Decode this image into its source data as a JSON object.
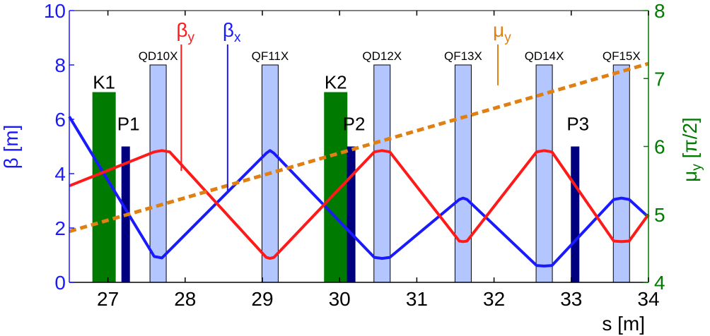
{
  "chart_data": {
    "type": "line",
    "x_label": "s [m]",
    "y_left_label_main": "β",
    "y_left_label_unit": " [m]",
    "y_right_label_main": "μ",
    "y_right_label_sub": "y",
    "y_right_label_unit": " [π/2]",
    "x_range": [
      26.5,
      34
    ],
    "y_left_range": [
      0,
      10
    ],
    "y_right_range": [
      4,
      8
    ],
    "x_ticks": [
      "27",
      "28",
      "29",
      "30",
      "31",
      "32",
      "33",
      "34"
    ],
    "y_left_ticks": [
      "0",
      "2",
      "4",
      "6",
      "8",
      "10"
    ],
    "y_right_ticks": [
      "4",
      "5",
      "6",
      "7",
      "8"
    ],
    "colors": {
      "beta_x": "#1a1aff",
      "beta_y": "#ff1a1a",
      "mu_y": "#e07f12",
      "kicker": "#007a00",
      "bpm": "#00007f",
      "quad_fill": "#b3c6ff",
      "right_axis": "#007a00",
      "left_axis": "#1a1aff"
    },
    "series": [
      {
        "name": "βx",
        "key": "beta_x",
        "x": [
          26.5,
          27.6,
          27.7,
          29.05,
          29.1,
          29.15,
          30.45,
          30.55,
          30.65,
          31.55,
          31.6,
          31.65,
          32.55,
          32.65,
          32.75,
          33.55,
          33.65,
          33.75,
          34.0
        ],
        "y": [
          6.1,
          0.95,
          0.9,
          4.75,
          4.85,
          4.75,
          0.92,
          0.88,
          0.92,
          3.05,
          3.1,
          3.05,
          0.62,
          0.6,
          0.62,
          3.05,
          3.1,
          3.05,
          2.4
        ]
      },
      {
        "name": "βy",
        "key": "beta_y",
        "x": [
          26.5,
          27.6,
          27.7,
          27.8,
          29.05,
          29.1,
          29.15,
          30.45,
          30.55,
          30.65,
          31.55,
          31.6,
          31.65,
          32.55,
          32.65,
          32.75,
          33.55,
          33.65,
          33.75,
          34.0
        ],
        "y": [
          3.55,
          4.8,
          4.85,
          4.8,
          0.92,
          0.88,
          0.92,
          4.8,
          4.85,
          4.8,
          1.52,
          1.5,
          1.52,
          4.8,
          4.85,
          4.8,
          1.52,
          1.5,
          1.52,
          2.5
        ]
      },
      {
        "name": "μy",
        "key": "mu_y",
        "axis": "right",
        "dashed": true,
        "x": [
          26.5,
          34.0
        ],
        "y": [
          4.75,
          7.22
        ]
      }
    ],
    "quadrupoles": [
      {
        "label": "QD10X",
        "center": 27.65,
        "height": 8.0
      },
      {
        "label": "QF11X",
        "center": 29.1,
        "height": 8.0
      },
      {
        "label": "QD12X",
        "center": 30.55,
        "height": 8.0
      },
      {
        "label": "QF13X",
        "center": 31.6,
        "height": 8.0
      },
      {
        "label": "QD14X",
        "center": 32.65,
        "height": 8.0
      },
      {
        "label": "QF15X",
        "center": 33.65,
        "height": 8.0
      }
    ],
    "kickers": [
      {
        "label": "K1",
        "center": 26.95,
        "height": 7.0
      },
      {
        "label": "K2",
        "center": 29.95,
        "height": 7.0
      }
    ],
    "bpms": [
      {
        "label": "P1",
        "center": 27.23,
        "height": 5.0
      },
      {
        "label": "P2",
        "center": 30.15,
        "height": 5.0
      },
      {
        "label": "P3",
        "center": 33.05,
        "height": 5.0
      }
    ],
    "annotations": [
      {
        "main": "β",
        "sub": "y",
        "key": "beta_y",
        "x": 27.95,
        "y_from": 4.1
      },
      {
        "main": "β",
        "sub": "x",
        "key": "beta_x",
        "x": 28.55,
        "y_from": 3.3
      },
      {
        "main": "μ",
        "sub": "y",
        "key": "mu_y",
        "x": 32.05,
        "y_from": 6.9
      }
    ]
  }
}
